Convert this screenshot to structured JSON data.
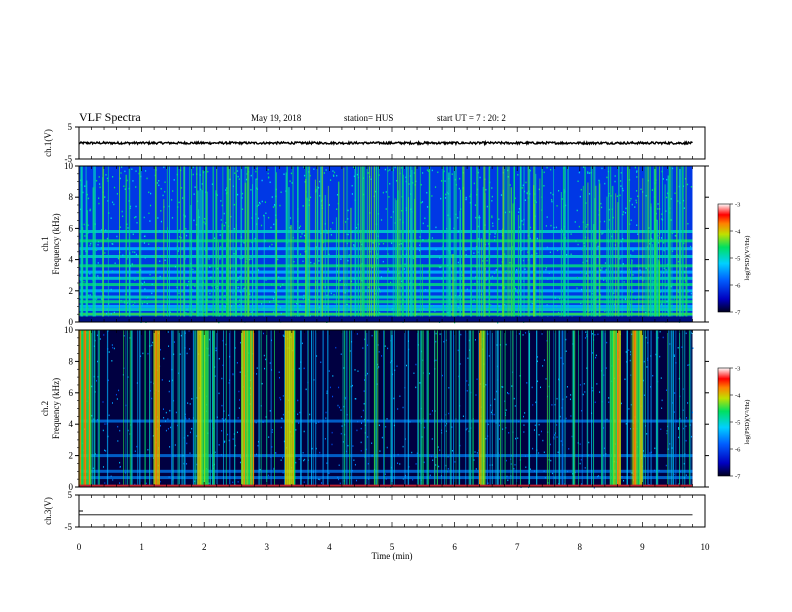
{
  "header": {
    "title": "VLF Spectra",
    "date": "May 19, 2018",
    "station": "station= HUS",
    "start": "start  UT  =   7 : 20: 2"
  },
  "chart_data": [
    {
      "type": "line",
      "panel": "ch1-waveform",
      "ylabel": "ch.1(V)",
      "ylim": [
        -5,
        5
      ],
      "yticks": [
        "5",
        "-5"
      ],
      "series": [
        {
          "values_desc": "",
          "mean": 0.0,
          "amplitude": 0.35
        }
      ]
    },
    {
      "type": "heatmap",
      "panel": "ch1-spectrogram",
      "ylabel": "ch.1 Frequency (kHz)",
      "ylim": [
        0,
        10
      ],
      "yticks": [
        "0",
        "2",
        "4",
        "6",
        "8",
        "10"
      ],
      "xlim": [
        0,
        10
      ],
      "color_range": [
        -7,
        -3
      ],
      "colorbar_label": "log(PSD)(V²/Hz)",
      "colorbar_ticks": [
        "-3",
        "-4",
        "-5",
        "-6",
        "-7"
      ],
      "horizontal_lines_khz": [
        0.5,
        0.8,
        1.0,
        1.3,
        1.6,
        2.0,
        2.4,
        2.8,
        3.2,
        3.6,
        4.2,
        4.7,
        5.2,
        5.8
      ],
      "background_level": -6.1
    },
    {
      "type": "heatmap",
      "panel": "ch2-spectrogram",
      "ylabel": "ch.2 Frequency (kHz)",
      "ylim": [
        0,
        10
      ],
      "yticks": [
        "0",
        "2",
        "4",
        "6",
        "8",
        "10"
      ],
      "xlim": [
        0,
        10
      ],
      "color_range": [
        -7,
        -3
      ],
      "colorbar_label": "log(PSD)(V²/Hz)",
      "colorbar_ticks": [
        "-3",
        "-4",
        "-5",
        "-6",
        "-7"
      ],
      "bright_bands_min": [
        [
          0.0,
          0.2
        ],
        [
          1.2,
          1.3
        ],
        [
          1.9,
          2.05
        ],
        [
          2.6,
          2.8
        ],
        [
          3.3,
          3.45
        ],
        [
          6.4,
          6.5
        ],
        [
          8.5,
          8.65
        ],
        [
          8.85,
          9.0
        ]
      ],
      "background_level": -6.9
    },
    {
      "type": "line",
      "panel": "ch3-waveform",
      "ylabel": "ch.3(V)",
      "ylim": [
        -5,
        5
      ],
      "yticks": [
        "5",
        "-5"
      ],
      "series": [
        {
          "mean": -1.2,
          "amplitude": 0.0
        }
      ]
    }
  ],
  "xaxis": {
    "label": "Time  (min)",
    "ticks": [
      "0",
      "1",
      "2",
      "3",
      "4",
      "5",
      "6",
      "7",
      "8",
      "9",
      "10"
    ],
    "xlim": [
      0,
      10
    ],
    "data_end": 9.8
  }
}
